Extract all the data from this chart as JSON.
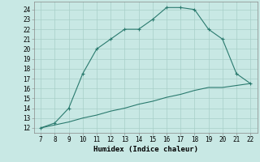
{
  "x_upper": [
    7,
    8,
    9,
    10,
    11,
    12,
    13,
    14,
    15,
    16,
    17,
    18,
    19,
    20,
    21,
    22
  ],
  "y_upper": [
    12,
    12.5,
    14,
    17.5,
    20,
    21,
    22,
    22,
    23,
    24.2,
    24.2,
    24,
    22,
    21,
    17.5,
    16.5
  ],
  "x_lower": [
    7,
    8,
    9,
    10,
    11,
    12,
    13,
    14,
    15,
    16,
    17,
    18,
    19,
    20,
    21,
    22
  ],
  "y_lower": [
    12,
    12.3,
    12.6,
    13.0,
    13.3,
    13.7,
    14.0,
    14.4,
    14.7,
    15.1,
    15.4,
    15.8,
    16.1,
    16.1,
    16.3,
    16.5
  ],
  "line_color": "#2a7a6e",
  "bg_color": "#c8e8e4",
  "grid_color": "#a8cfc8",
  "xlabel": "Humidex (Indice chaleur)",
  "xlabel_fontsize": 6.5,
  "xlim": [
    6.5,
    22.5
  ],
  "ylim": [
    11.5,
    24.8
  ],
  "xticks": [
    7,
    8,
    9,
    10,
    11,
    12,
    13,
    14,
    15,
    16,
    17,
    18,
    19,
    20,
    21,
    22
  ],
  "yticks": [
    12,
    13,
    14,
    15,
    16,
    17,
    18,
    19,
    20,
    21,
    22,
    23,
    24
  ],
  "tick_fontsize": 5.5,
  "marker": "+"
}
